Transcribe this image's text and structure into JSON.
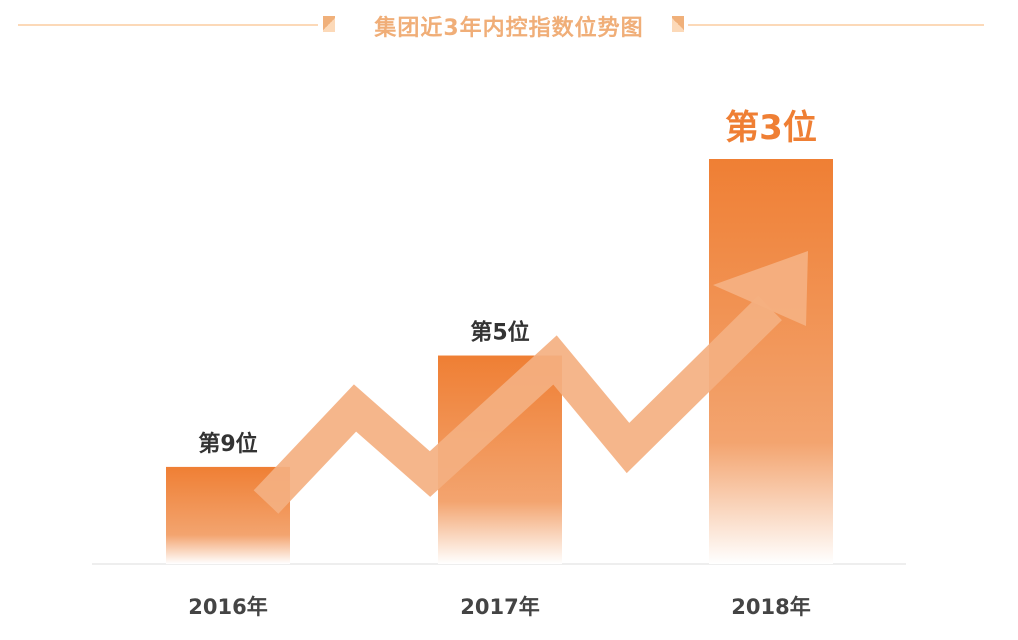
{
  "chart_data": {
    "type": "bar",
    "title": "集团近3年内控指数位势图",
    "categories": [
      "2016年",
      "2017年",
      "2018年"
    ],
    "values": [
      9,
      5,
      3
    ],
    "value_labels": [
      "第9位",
      "第5位",
      "第3位"
    ],
    "value_meaning": "rank (lower is better; bar height grows as rank improves)",
    "xlabel": "",
    "ylabel": "",
    "grid": false,
    "annotation": "upward trend arrow"
  },
  "colors": {
    "bar": "#ef7f34",
    "arrow": "#f4b081",
    "title": "#f0ae78",
    "axis_text": "#444444"
  }
}
